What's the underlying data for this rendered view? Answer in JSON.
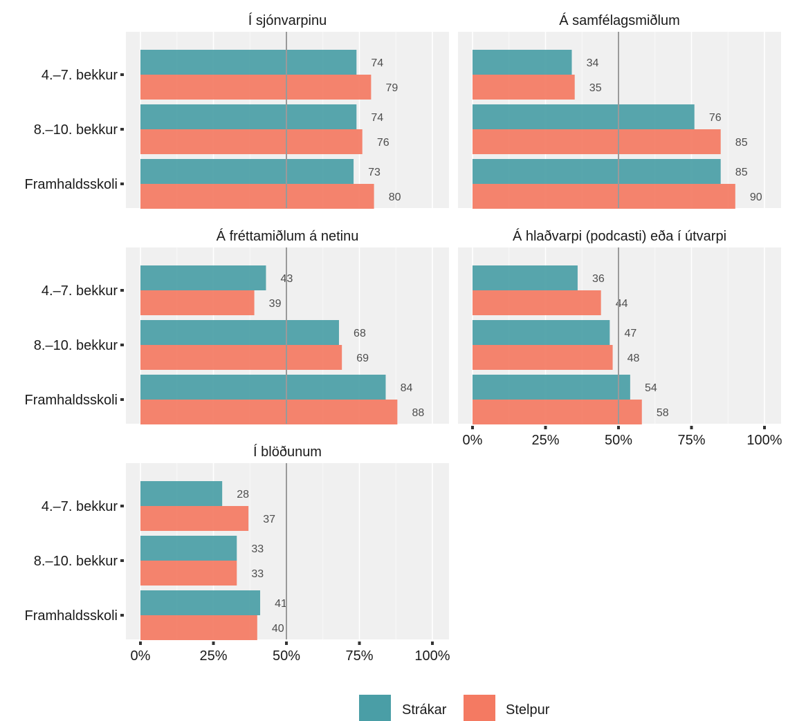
{
  "chart_data": {
    "type": "bar",
    "orientation": "horizontal",
    "categories": [
      "4.–7. bekkur",
      "8.–10. bekkur",
      "Framhaldsskoli"
    ],
    "x_ticks": [
      "0%",
      "25%",
      "50%",
      "75%",
      "100%"
    ],
    "xlim": [
      0,
      100
    ],
    "reference_line": 50,
    "grid": true,
    "legend_position": "bottom",
    "legend": [
      {
        "name": "Strákar",
        "color": "#4a9ea6"
      },
      {
        "name": "Stelpur",
        "color": "#f47a62"
      }
    ],
    "panels": [
      {
        "title": "Í sjónvarpinu",
        "series": [
          {
            "name": "Strákar",
            "values": [
              74,
              74,
              73
            ]
          },
          {
            "name": "Stelpur",
            "values": [
              79,
              76,
              80
            ]
          }
        ]
      },
      {
        "title": "Á samfélagsmiðlum",
        "series": [
          {
            "name": "Strákar",
            "values": [
              34,
              76,
              85
            ]
          },
          {
            "name": "Stelpur",
            "values": [
              35,
              85,
              90
            ]
          }
        ]
      },
      {
        "title": "Á fréttamiðlum á netinu",
        "series": [
          {
            "name": "Strákar",
            "values": [
              43,
              68,
              84
            ]
          },
          {
            "name": "Stelpur",
            "values": [
              39,
              69,
              88
            ]
          }
        ]
      },
      {
        "title": "Á hlaðvarpi (podcasti) eða í útvarpi",
        "series": [
          {
            "name": "Strákar",
            "values": [
              36,
              47,
              54
            ]
          },
          {
            "name": "Stelpur",
            "values": [
              44,
              48,
              58
            ]
          }
        ]
      },
      {
        "title": "Í blöðunum",
        "series": [
          {
            "name": "Strákar",
            "values": [
              28,
              33,
              41
            ]
          },
          {
            "name": "Stelpur",
            "values": [
              37,
              33,
              40
            ]
          }
        ]
      }
    ]
  }
}
